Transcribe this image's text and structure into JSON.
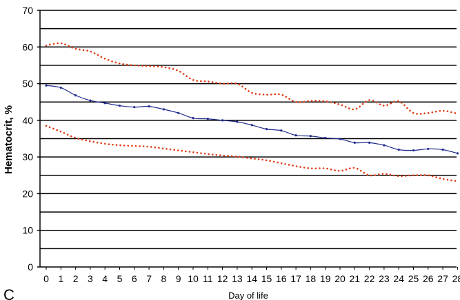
{
  "panel_label": "C",
  "chart_data": {
    "type": "line",
    "title": "",
    "xlabel": "Day of life",
    "ylabel": "Hematocrit, %",
    "ylim": [
      0,
      70
    ],
    "ytick_labels": [
      "0",
      "10",
      "20",
      "30",
      "40",
      "50",
      "60",
      "70"
    ],
    "x": [
      0,
      1,
      2,
      3,
      4,
      5,
      6,
      7,
      8,
      9,
      10,
      11,
      12,
      13,
      14,
      15,
      16,
      17,
      18,
      19,
      20,
      21,
      22,
      23,
      24,
      25,
      26,
      27,
      28
    ],
    "grid": "horizontal lines every 5",
    "series": [
      {
        "color": "#1f2a8c",
        "style": "solid-with-markers",
        "values": [
          49.5,
          48.9,
          46.8,
          45.4,
          44.7,
          44.0,
          43.6,
          43.8,
          43.0,
          42.0,
          40.6,
          40.4,
          40.0,
          39.6,
          38.7,
          37.6,
          37.2,
          35.9,
          35.7,
          35.2,
          34.9,
          33.9,
          33.9,
          33.2,
          32.0,
          31.8,
          32.2,
          32.0,
          31.0
        ]
      },
      {
        "color": "#e03a12",
        "style": "dotted",
        "values": [
          60.4,
          61.0,
          59.5,
          58.8,
          56.8,
          55.5,
          55.0,
          54.8,
          54.5,
          53.5,
          51.0,
          50.6,
          50.0,
          50.0,
          47.5,
          47.0,
          47.0,
          45.0,
          45.3,
          45.2,
          44.3,
          43.0,
          45.5,
          44.0,
          45.2,
          42.0,
          42.0,
          42.6,
          41.8
        ]
      },
      {
        "color": "#e03a12",
        "style": "dotted",
        "values": [
          38.5,
          36.9,
          35.2,
          34.3,
          33.6,
          33.2,
          33.0,
          32.8,
          32.3,
          31.8,
          31.3,
          30.8,
          30.4,
          30.1,
          29.6,
          29.1,
          28.3,
          27.5,
          26.9,
          26.9,
          26.2,
          27.0,
          25.0,
          25.4,
          24.8,
          25.0,
          25.0,
          24.0,
          23.4
        ]
      }
    ]
  }
}
